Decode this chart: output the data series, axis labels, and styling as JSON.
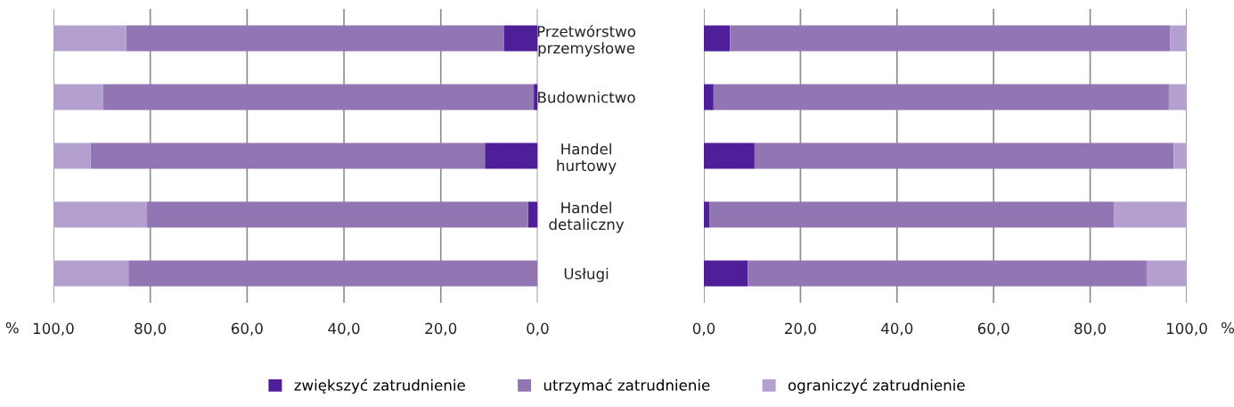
{
  "chart_data": [
    {
      "type": "bar",
      "orientation": "horizontal",
      "stacked": true,
      "series": [
        {
          "name": "zwiększyć zatrudnienie",
          "color": "#4f1f9a",
          "values": [
            7.0,
            0.8,
            10.9,
            2.0,
            0.0
          ]
        },
        {
          "name": "utrzymać zatrudnienie",
          "color": "#9275b3",
          "values": [
            78.0,
            88.9,
            81.4,
            78.8,
            84.5
          ]
        },
        {
          "name": "ograniczyć zatrudnienie",
          "color": "#b4a0cf",
          "values": [
            15.0,
            10.3,
            7.7,
            19.2,
            15.5
          ]
        }
      ],
      "xlim": [
        100,
        0
      ],
      "xticks": [
        {
          "value": 100,
          "label": "100,0"
        },
        {
          "value": 80,
          "label": "80,0"
        },
        {
          "value": 60,
          "label": "60,0"
        },
        {
          "value": 40,
          "label": "40,0"
        },
        {
          "value": 20,
          "label": "20,0"
        },
        {
          "value": 0,
          "label": "0,0"
        }
      ],
      "xlabel": "%",
      "grid": "x",
      "tick_labels": "x",
      "legend": "bottom"
    },
    {
      "type": "bar",
      "orientation": "horizontal",
      "stacked": true,
      "categories": [
        "Przetwórstwo\nprzemysłowe",
        "Budownictwo",
        "Handel\nhurtowy",
        "Handel\ndetaliczny",
        "Usługi"
      ],
      "series": [
        {
          "color": "#4f1f9a",
          "values": [
            5.4,
            2.0,
            10.5,
            1.2,
            9.1
          ]
        },
        {
          "color": "#9275b3",
          "values": [
            91.2,
            94.3,
            86.8,
            83.7,
            82.6
          ]
        },
        {
          "color": "#b4a0cf",
          "values": [
            3.4,
            3.7,
            2.7,
            15.1,
            8.3
          ]
        }
      ],
      "xlim": [
        0,
        100
      ],
      "xticks": [
        {
          "value": 0,
          "label": "0,0"
        },
        {
          "value": 20,
          "label": "20,0"
        },
        {
          "value": 40,
          "label": "40,0"
        },
        {
          "value": 60,
          "label": "60,0"
        },
        {
          "value": 80,
          "label": "80,0"
        },
        {
          "value": 100,
          "label": "100,0"
        }
      ],
      "xlabel": "%",
      "grid": "x"
    }
  ]
}
